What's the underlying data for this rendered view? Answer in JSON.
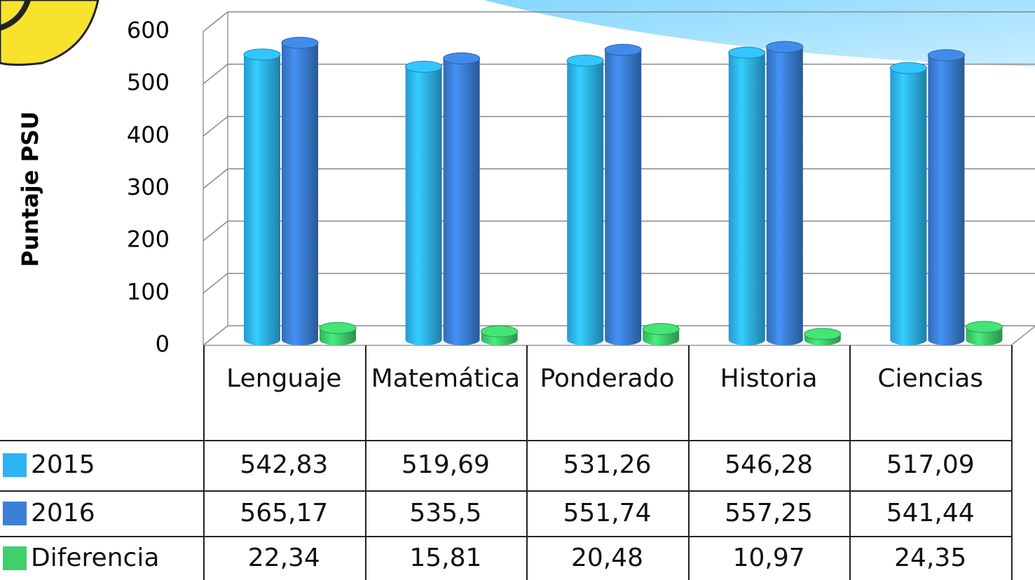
{
  "chart_data": {
    "type": "bar3d",
    "y_label": "Puntaje PSU",
    "categories": [
      "Lenguaje",
      "Matemática",
      "Ponderado",
      "Historia",
      "Ciencias"
    ],
    "series": [
      {
        "name": "2015",
        "color": "#2db4f2",
        "values": [
          542.83,
          519.69,
          531.26,
          546.28,
          517.09
        ],
        "value_labels": [
          "542,83",
          "519,69",
          "531,26",
          "546,28",
          "517,09"
        ]
      },
      {
        "name": "2016",
        "color": "#3b7fd6",
        "values": [
          565.17,
          535.5,
          551.74,
          557.25,
          541.44
        ],
        "value_labels": [
          "565,17",
          "535,5",
          "551,74",
          "557,25",
          "541,44"
        ]
      },
      {
        "name": "Diferencia",
        "color": "#3fcf6c",
        "values": [
          22.34,
          15.81,
          20.48,
          10.97,
          24.35
        ],
        "value_labels": [
          "22,34",
          "15,81",
          "20,48",
          "10,97",
          "24,35"
        ]
      }
    ],
    "ylim": [
      0,
      600
    ],
    "yticks": [
      0,
      100,
      200,
      300,
      400,
      500,
      600
    ],
    "grid": true,
    "data_table": true
  }
}
